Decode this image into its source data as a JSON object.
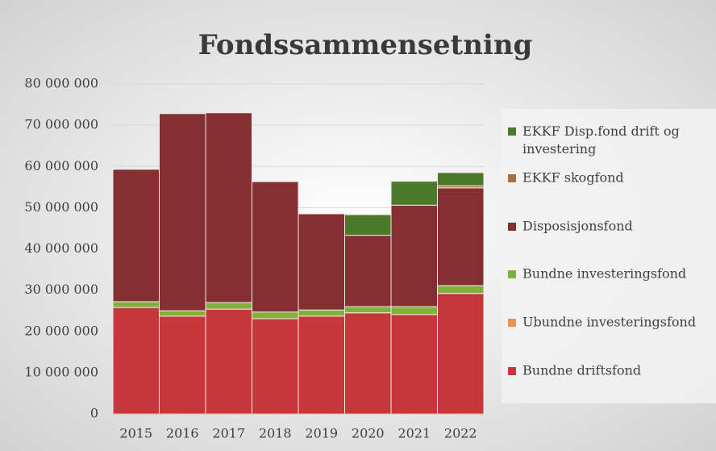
{
  "chart_data": {
    "type": "stacked_bar",
    "title": "Fondssammensetning",
    "categories": [
      "2015",
      "2016",
      "2017",
      "2018",
      "2019",
      "2020",
      "2021",
      "2022"
    ],
    "series": [
      {
        "name": "Bundne driftsfond",
        "color": "#c8383b",
        "values": [
          25800000,
          23700000,
          25400000,
          23100000,
          23700000,
          24500000,
          24100000,
          29200000
        ]
      },
      {
        "name": "Ubundne investeringsfond",
        "color": "#f0914e",
        "values": [
          0,
          0,
          0,
          0,
          0,
          0,
          0,
          0
        ]
      },
      {
        "name": "Bundne investeringsfond",
        "color": "#7fb13b",
        "values": [
          1400000,
          1300000,
          1600000,
          1600000,
          1500000,
          1500000,
          1900000,
          1900000
        ]
      },
      {
        "name": "Disposisjonsfond",
        "color": "#862f32",
        "values": [
          32100000,
          47800000,
          46000000,
          31600000,
          23300000,
          17300000,
          24600000,
          23700000
        ]
      },
      {
        "name": "EKKF skogfond",
        "color": "#a9703d",
        "values": [
          0,
          0,
          0,
          0,
          0,
          0,
          0,
          500000
        ]
      },
      {
        "name": "EKKF Disp.fond drift og investering",
        "color": "#4c7a2a",
        "values": [
          0,
          0,
          0,
          0,
          0,
          5000000,
          5800000,
          3200000
        ]
      }
    ],
    "ylim": [
      0,
      80000000
    ],
    "yticks": [
      {
        "value": 0,
        "label": "0"
      },
      {
        "value": 10000000,
        "label": "10 000 000"
      },
      {
        "value": 20000000,
        "label": "20 000 000"
      },
      {
        "value": 30000000,
        "label": "30 000 000"
      },
      {
        "value": 40000000,
        "label": "40 000 000"
      },
      {
        "value": 50000000,
        "label": "50 000 000"
      },
      {
        "value": 60000000,
        "label": "60 000 000"
      },
      {
        "value": 70000000,
        "label": "70 000 000"
      },
      {
        "value": 80000000,
        "label": "80 000 000"
      }
    ],
    "grid": true,
    "legend": "right"
  }
}
